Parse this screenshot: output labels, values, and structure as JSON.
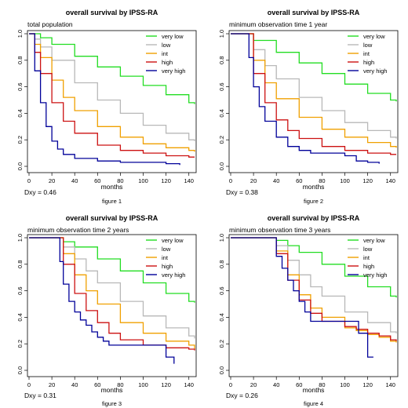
{
  "legend_labels": [
    "very low",
    "low",
    "int",
    "high",
    "very high"
  ],
  "series_colors": [
    "#22dd22",
    "#b8b8b8",
    "#f0a000",
    "#cc1111",
    "#000099"
  ],
  "chart_data": [
    {
      "type": "line",
      "title": "overall survival by IPSS-RA",
      "subtitle": "total population",
      "xlabel": "months",
      "ylabel": "",
      "caption": "figure 1",
      "stat": "Dxy = 0.46",
      "xlim": [
        0,
        145
      ],
      "ylim": [
        0,
        1.0
      ],
      "x_ticks": [
        0,
        20,
        40,
        60,
        80,
        100,
        120,
        140
      ],
      "y_ticks": [
        0.0,
        0.2,
        0.4,
        0.6,
        0.8,
        1.0
      ],
      "legend_position": "top-right",
      "series": [
        {
          "name": "very low",
          "x": [
            0,
            10,
            20,
            40,
            60,
            80,
            100,
            120,
            140,
            145
          ],
          "y": [
            1.0,
            0.97,
            0.92,
            0.83,
            0.75,
            0.68,
            0.61,
            0.54,
            0.48,
            0.47
          ]
        },
        {
          "name": "low",
          "x": [
            0,
            5,
            10,
            20,
            40,
            60,
            80,
            100,
            120,
            140,
            145
          ],
          "y": [
            1.0,
            0.96,
            0.9,
            0.8,
            0.63,
            0.5,
            0.4,
            0.31,
            0.25,
            0.2,
            0.19
          ]
        },
        {
          "name": "int",
          "x": [
            0,
            5,
            10,
            20,
            30,
            40,
            60,
            80,
            100,
            120,
            140,
            145
          ],
          "y": [
            1.0,
            0.92,
            0.82,
            0.65,
            0.52,
            0.42,
            0.3,
            0.22,
            0.17,
            0.14,
            0.12,
            0.11
          ]
        },
        {
          "name": "high",
          "x": [
            0,
            5,
            10,
            20,
            30,
            40,
            60,
            80,
            100,
            120,
            140,
            145
          ],
          "y": [
            1.0,
            0.86,
            0.7,
            0.48,
            0.34,
            0.25,
            0.16,
            0.12,
            0.1,
            0.08,
            0.07,
            0.07
          ]
        },
        {
          "name": "very high",
          "x": [
            0,
            5,
            10,
            15,
            20,
            25,
            30,
            40,
            60,
            80,
            100,
            120,
            132
          ],
          "y": [
            1.0,
            0.72,
            0.48,
            0.3,
            0.19,
            0.13,
            0.09,
            0.06,
            0.04,
            0.03,
            0.03,
            0.02,
            0.01
          ]
        }
      ]
    },
    {
      "type": "line",
      "title": "overall survival by IPSS-RA",
      "subtitle": "minimum observation time 1 year",
      "xlabel": "months",
      "ylabel": "",
      "caption": "figure 2",
      "stat": "Dxy = 0.38",
      "xlim": [
        0,
        145
      ],
      "ylim": [
        0,
        1.0
      ],
      "x_ticks": [
        0,
        20,
        40,
        60,
        80,
        100,
        120,
        140
      ],
      "y_ticks": [
        0.0,
        0.2,
        0.4,
        0.6,
        0.8,
        1.0
      ],
      "legend_position": "top-right",
      "series": [
        {
          "name": "very low",
          "x": [
            0,
            12,
            20,
            40,
            60,
            80,
            100,
            120,
            140,
            145
          ],
          "y": [
            1.0,
            1.0,
            0.95,
            0.86,
            0.78,
            0.7,
            0.62,
            0.55,
            0.5,
            0.49
          ]
        },
        {
          "name": "low",
          "x": [
            0,
            12,
            20,
            30,
            40,
            60,
            80,
            100,
            120,
            140,
            145
          ],
          "y": [
            1.0,
            1.0,
            0.88,
            0.76,
            0.66,
            0.52,
            0.42,
            0.33,
            0.27,
            0.22,
            0.21
          ]
        },
        {
          "name": "int",
          "x": [
            0,
            12,
            20,
            30,
            40,
            60,
            80,
            100,
            120,
            140,
            145
          ],
          "y": [
            1.0,
            1.0,
            0.8,
            0.63,
            0.51,
            0.37,
            0.28,
            0.22,
            0.18,
            0.15,
            0.14
          ]
        },
        {
          "name": "high",
          "x": [
            0,
            12,
            20,
            30,
            40,
            50,
            60,
            80,
            100,
            120,
            140,
            145
          ],
          "y": [
            1.0,
            1.0,
            0.7,
            0.48,
            0.35,
            0.27,
            0.21,
            0.15,
            0.12,
            0.1,
            0.09,
            0.09
          ]
        },
        {
          "name": "very high",
          "x": [
            0,
            12,
            16,
            20,
            25,
            30,
            40,
            50,
            60,
            70,
            100,
            110,
            120,
            130
          ],
          "y": [
            1.0,
            1.0,
            0.82,
            0.6,
            0.45,
            0.34,
            0.22,
            0.15,
            0.12,
            0.1,
            0.08,
            0.04,
            0.03,
            0.02
          ]
        }
      ]
    },
    {
      "type": "line",
      "title": "overall survival by IPSS-RA",
      "subtitle": "minimum observation time 2 years",
      "xlabel": "months",
      "ylabel": "",
      "caption": "figure 3",
      "stat": "Dxy = 0.31",
      "xlim": [
        0,
        145
      ],
      "ylim": [
        0,
        1.0
      ],
      "x_ticks": [
        0,
        20,
        40,
        60,
        80,
        100,
        120,
        140
      ],
      "y_ticks": [
        0.0,
        0.2,
        0.4,
        0.6,
        0.8,
        1.0
      ],
      "legend_position": "top-right",
      "series": [
        {
          "name": "very low",
          "x": [
            0,
            24,
            30,
            40,
            60,
            80,
            100,
            120,
            140,
            145
          ],
          "y": [
            1.0,
            1.0,
            0.97,
            0.93,
            0.84,
            0.75,
            0.66,
            0.58,
            0.52,
            0.51
          ]
        },
        {
          "name": "low",
          "x": [
            0,
            24,
            30,
            40,
            50,
            60,
            80,
            100,
            120,
            140,
            145
          ],
          "y": [
            1.0,
            1.0,
            0.93,
            0.84,
            0.75,
            0.66,
            0.52,
            0.41,
            0.32,
            0.26,
            0.24
          ]
        },
        {
          "name": "int",
          "x": [
            0,
            24,
            30,
            40,
            50,
            60,
            80,
            100,
            120,
            140,
            145
          ],
          "y": [
            1.0,
            1.0,
            0.88,
            0.72,
            0.6,
            0.5,
            0.36,
            0.28,
            0.22,
            0.19,
            0.16
          ]
        },
        {
          "name": "high",
          "x": [
            0,
            24,
            30,
            40,
            50,
            60,
            70,
            80,
            100,
            120,
            140,
            145
          ],
          "y": [
            1.0,
            1.0,
            0.8,
            0.58,
            0.45,
            0.36,
            0.28,
            0.23,
            0.19,
            0.17,
            0.16,
            0.15
          ]
        },
        {
          "name": "very high",
          "x": [
            0,
            24,
            27,
            30,
            35,
            40,
            45,
            50,
            55,
            60,
            65,
            70,
            90,
            110,
            120,
            127
          ],
          "y": [
            1.0,
            1.0,
            0.82,
            0.65,
            0.52,
            0.44,
            0.38,
            0.34,
            0.29,
            0.25,
            0.22,
            0.19,
            0.19,
            0.19,
            0.1,
            0.05
          ]
        }
      ]
    },
    {
      "type": "line",
      "title": "overall survival by IPSS-RA",
      "subtitle": "minimum observation time 3 years",
      "xlabel": "months",
      "ylabel": "",
      "caption": "figure 4",
      "stat": "Dxy = 0.26",
      "xlim": [
        0,
        145
      ],
      "ylim": [
        0,
        1.0
      ],
      "x_ticks": [
        0,
        20,
        40,
        60,
        80,
        100,
        120,
        140
      ],
      "y_ticks": [
        0.0,
        0.2,
        0.4,
        0.6,
        0.8,
        1.0
      ],
      "legend_position": "top-right",
      "series": [
        {
          "name": "very low",
          "x": [
            0,
            36,
            40,
            50,
            60,
            80,
            100,
            120,
            140,
            145
          ],
          "y": [
            1.0,
            1.0,
            0.98,
            0.94,
            0.89,
            0.8,
            0.71,
            0.63,
            0.56,
            0.55
          ]
        },
        {
          "name": "low",
          "x": [
            0,
            36,
            40,
            50,
            60,
            70,
            80,
            100,
            120,
            140,
            145
          ],
          "y": [
            1.0,
            1.0,
            0.94,
            0.83,
            0.72,
            0.63,
            0.56,
            0.44,
            0.36,
            0.29,
            0.28
          ]
        },
        {
          "name": "int",
          "x": [
            0,
            36,
            40,
            50,
            60,
            70,
            80,
            100,
            110,
            120,
            130,
            140,
            145
          ],
          "y": [
            1.0,
            1.0,
            0.9,
            0.72,
            0.57,
            0.47,
            0.4,
            0.32,
            0.3,
            0.27,
            0.25,
            0.22,
            0.21
          ]
        },
        {
          "name": "high",
          "x": [
            0,
            36,
            40,
            50,
            60,
            70,
            80,
            100,
            110,
            120,
            130,
            140,
            145
          ],
          "y": [
            1.0,
            1.0,
            0.88,
            0.68,
            0.53,
            0.43,
            0.37,
            0.33,
            0.31,
            0.28,
            0.26,
            0.23,
            0.22
          ]
        },
        {
          "name": "very high",
          "x": [
            0,
            36,
            40,
            45,
            50,
            55,
            60,
            65,
            70,
            80,
            95,
            110,
            112,
            120,
            125
          ],
          "y": [
            1.0,
            1.0,
            0.86,
            0.77,
            0.68,
            0.6,
            0.52,
            0.44,
            0.37,
            0.37,
            0.37,
            0.37,
            0.28,
            0.1,
            0.1
          ]
        }
      ]
    }
  ]
}
